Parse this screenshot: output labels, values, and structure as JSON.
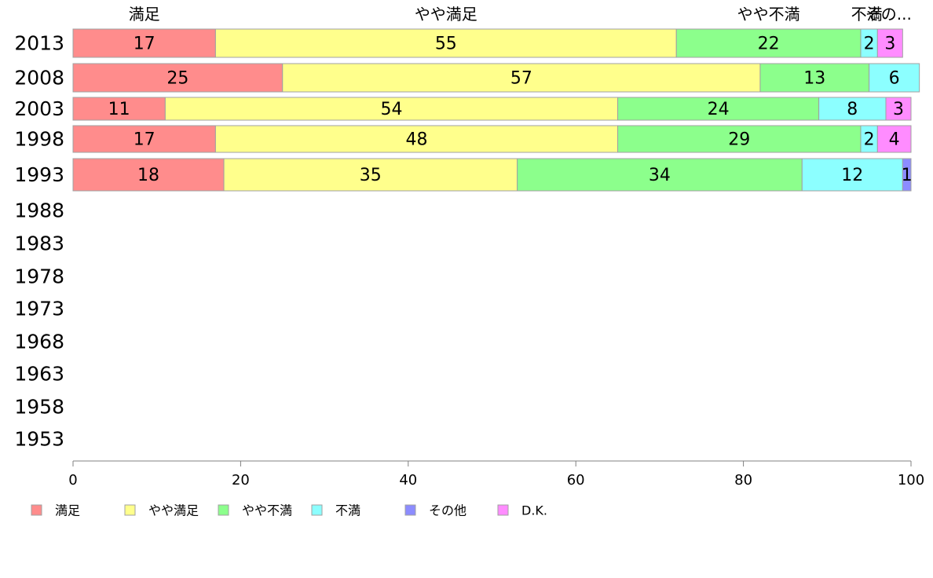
{
  "chart_data": {
    "type": "bar",
    "orientation": "horizontal",
    "stacked": true,
    "categories": [
      "2013",
      "2008",
      "2003",
      "1998",
      "1993",
      "1988",
      "1983",
      "1978",
      "1973",
      "1968",
      "1963",
      "1958",
      "1953"
    ],
    "series": [
      {
        "name": "満足",
        "color": "#ff8c8c",
        "values": [
          17,
          25,
          11,
          17,
          18,
          null,
          null,
          null,
          null,
          null,
          null,
          null,
          null
        ]
      },
      {
        "name": "やや満足",
        "color": "#ffff8c",
        "values": [
          55,
          57,
          54,
          48,
          35,
          null,
          null,
          null,
          null,
          null,
          null,
          null,
          null
        ]
      },
      {
        "name": "やや不満",
        "color": "#8cff8c",
        "values": [
          22,
          13,
          24,
          29,
          34,
          null,
          null,
          null,
          null,
          null,
          null,
          null,
          null
        ]
      },
      {
        "name": "不満",
        "color": "#8cffff",
        "values": [
          2,
          6,
          8,
          2,
          12,
          null,
          null,
          null,
          null,
          null,
          null,
          null,
          null
        ]
      },
      {
        "name": "その他",
        "color": "#8c8cff",
        "values": [
          0,
          0,
          0,
          0,
          1,
          null,
          null,
          null,
          null,
          null,
          null,
          null,
          null
        ]
      },
      {
        "name": "D.K.",
        "color": "#ff8cff",
        "values": [
          3,
          0,
          3,
          4,
          0,
          null,
          null,
          null,
          null,
          null,
          null,
          null,
          null
        ]
      }
    ],
    "top_labels": [
      "満足",
      "やや満足",
      "やや不満",
      "不満",
      "その..."
    ],
    "xlim": [
      0,
      100
    ],
    "xticks": [
      "0",
      "20",
      "40",
      "60",
      "80",
      "100"
    ],
    "legend": [
      "満足",
      "やや満足",
      "やや不満",
      "不満",
      "その他",
      "D.K."
    ],
    "legend_position": "bottom",
    "grid": false
  }
}
